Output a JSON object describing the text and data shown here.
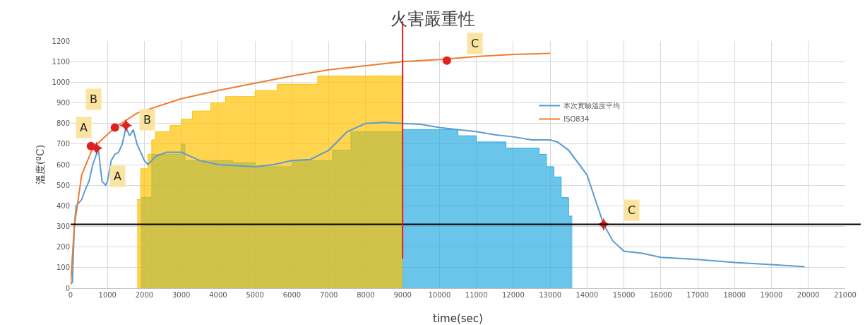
{
  "chart_data": {
    "type": "line",
    "title": "火害嚴重性",
    "xlabel": "time(sec)",
    "ylabel": "溫度(ºC)",
    "xlim": [
      0,
      21000
    ],
    "xticks": [
      0,
      1000,
      2000,
      3000,
      4000,
      5000,
      6000,
      7000,
      8000,
      9000,
      10000,
      11000,
      12000,
      13000,
      14000,
      15000,
      16000,
      17000,
      18000,
      19000,
      20000,
      21000
    ],
    "ylim": [
      0,
      1200
    ],
    "yticks": [
      0,
      100,
      200,
      300,
      400,
      500,
      600,
      700,
      800,
      900,
      1000,
      1100,
      1200
    ],
    "grid": true,
    "legend": "right",
    "series": [
      {
        "type": "area",
        "color": "#29abe2",
        "x": [
          1900,
          2200,
          2200,
          3000,
          3000,
          3100,
          3100,
          4400,
          4400,
          5000,
          5000,
          6000,
          6000,
          7100,
          7100,
          7600,
          7600,
          9000,
          9000,
          10500,
          10500,
          11000,
          11000,
          11800,
          11800,
          12700,
          12700,
          12900,
          12900,
          13100,
          13100,
          13300,
          13300,
          13500,
          13500,
          13600
        ],
        "values": [
          440,
          440,
          650,
          650,
          700,
          700,
          620,
          620,
          610,
          610,
          590,
          590,
          620,
          620,
          670,
          670,
          760,
          760,
          770,
          770,
          740,
          740,
          710,
          710,
          680,
          680,
          650,
          650,
          590,
          590,
          540,
          540,
          440,
          440,
          350,
          350
        ]
      },
      {
        "type": "area",
        "color": "#ffc000",
        "x": [
          1800,
          1900,
          1900,
          2100,
          2100,
          2200,
          2200,
          2300,
          2300,
          2700,
          2700,
          3000,
          3000,
          3300,
          3300,
          3800,
          3800,
          4200,
          4200,
          5000,
          5000,
          5600,
          5600,
          6700,
          6700,
          9000
        ],
        "values": [
          430,
          430,
          580,
          580,
          650,
          650,
          720,
          720,
          760,
          760,
          790,
          790,
          820,
          820,
          860,
          860,
          900,
          900,
          930,
          930,
          960,
          960,
          990,
          990,
          1030,
          1030
        ]
      },
      {
        "name": "本次實驗溫度平均",
        "color": "#5b9bd5",
        "x": [
          0,
          50,
          100,
          150,
          300,
          400,
          500,
          600,
          700,
          750,
          800,
          850,
          950,
          1000,
          1100,
          1200,
          1300,
          1400,
          1500,
          1600,
          1700,
          1800,
          1900,
          2000,
          2100,
          2300,
          2600,
          3000,
          3500,
          4000,
          4500,
          5000,
          5500,
          6000,
          6500,
          7000,
          7500,
          8000,
          8500,
          9000,
          9500,
          10000,
          10500,
          11000,
          11500,
          12000,
          12500,
          13000,
          13200,
          13500,
          14000,
          14450,
          14700,
          15000,
          15500,
          16000,
          17000,
          18000,
          19000,
          19900
        ],
        "values": [
          20,
          30,
          300,
          400,
          430,
          480,
          520,
          600,
          650,
          680,
          600,
          520,
          500,
          520,
          620,
          650,
          660,
          700,
          780,
          740,
          770,
          700,
          660,
          620,
          600,
          640,
          660,
          660,
          620,
          600,
          595,
          590,
          600,
          620,
          625,
          670,
          760,
          800,
          805,
          800,
          795,
          780,
          770,
          760,
          745,
          735,
          720,
          720,
          710,
          670,
          550,
          310,
          230,
          180,
          170,
          150,
          140,
          125,
          115,
          105
        ]
      },
      {
        "name": "ISO834",
        "color": "#ed7d31",
        "x": [
          0,
          100,
          300,
          600,
          1200,
          1800,
          3000,
          4000,
          5000,
          6000,
          7000,
          8000,
          9000,
          10000,
          11000,
          12000,
          13000
        ],
        "values": [
          20,
          300,
          550,
          680,
          780,
          850,
          920,
          960,
          995,
          1030,
          1060,
          1080,
          1100,
          1110,
          1125,
          1135,
          1140
        ]
      },
      {
        "type": "scatter",
        "marker": "circle",
        "color": "#e02020",
        "x": [
          550,
          1200,
          10200
        ],
        "values": [
          690,
          780,
          1105
        ]
      },
      {
        "type": "scatter",
        "marker": "cross",
        "color": "#e02020",
        "x": [
          700,
          1500,
          14450
        ],
        "values": [
          680,
          790,
          310
        ]
      }
    ],
    "ref_lines": [
      {
        "axis": "y",
        "value": 310,
        "color": "#000000"
      },
      {
        "axis": "x",
        "value": 9000,
        "color": "#e02020"
      }
    ],
    "annotations": [
      {
        "text": "A",
        "x": 550,
        "y": 690
      },
      {
        "text": "A",
        "x": 700,
        "y": 680
      },
      {
        "text": "B",
        "x": 1200,
        "y": 780
      },
      {
        "text": "B",
        "x": 1500,
        "y": 790
      },
      {
        "text": "C",
        "x": 10200,
        "y": 1105
      },
      {
        "text": "C",
        "x": 14450,
        "y": 310
      }
    ]
  }
}
